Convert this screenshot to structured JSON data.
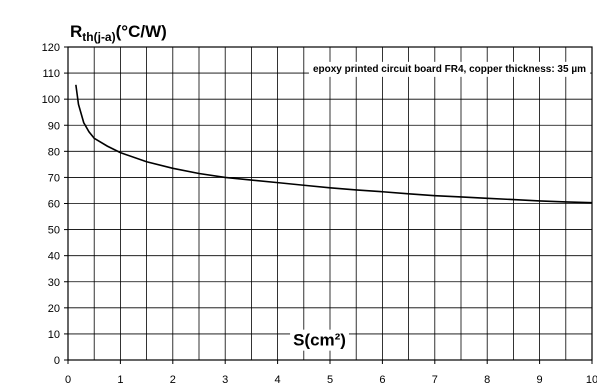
{
  "chart_data": {
    "type": "line",
    "y_label": {
      "main": "R",
      "sub": "th(j-a)",
      "unit": "(°C/W)"
    },
    "x_label": "S(cm²)",
    "annotation": "epoxy printed circuit board FR4, copper thickness: 35 µm",
    "xlim": [
      0,
      10
    ],
    "ylim": [
      0,
      120
    ],
    "x_ticks": [
      "0",
      "1",
      "2",
      "3",
      "4",
      "5",
      "6",
      "7",
      "8",
      "9",
      "10"
    ],
    "y_ticks": [
      "0",
      "10",
      "20",
      "30",
      "40",
      "50",
      "60",
      "70",
      "80",
      "90",
      "100",
      "110",
      "120"
    ],
    "x_minor_step": 0.5,
    "grid": true,
    "series": [
      {
        "color": "#000000",
        "points": [
          [
            0.15,
            105.5
          ],
          [
            0.2,
            98
          ],
          [
            0.3,
            91
          ],
          [
            0.4,
            87.5
          ],
          [
            0.5,
            85
          ],
          [
            0.75,
            82
          ],
          [
            1.0,
            79.5
          ],
          [
            1.5,
            76
          ],
          [
            2.0,
            73.5
          ],
          [
            2.5,
            71.5
          ],
          [
            3.0,
            70
          ],
          [
            3.5,
            69
          ],
          [
            4.0,
            68
          ],
          [
            4.5,
            67
          ],
          [
            5.0,
            66
          ],
          [
            5.5,
            65.2
          ],
          [
            6.0,
            64.5
          ],
          [
            6.5,
            63.7
          ],
          [
            7.0,
            63
          ],
          [
            7.5,
            62.5
          ],
          [
            8.0,
            62
          ],
          [
            8.5,
            61.5
          ],
          [
            9.0,
            61
          ],
          [
            9.5,
            60.6
          ],
          [
            10.0,
            60.3
          ]
        ]
      }
    ]
  }
}
